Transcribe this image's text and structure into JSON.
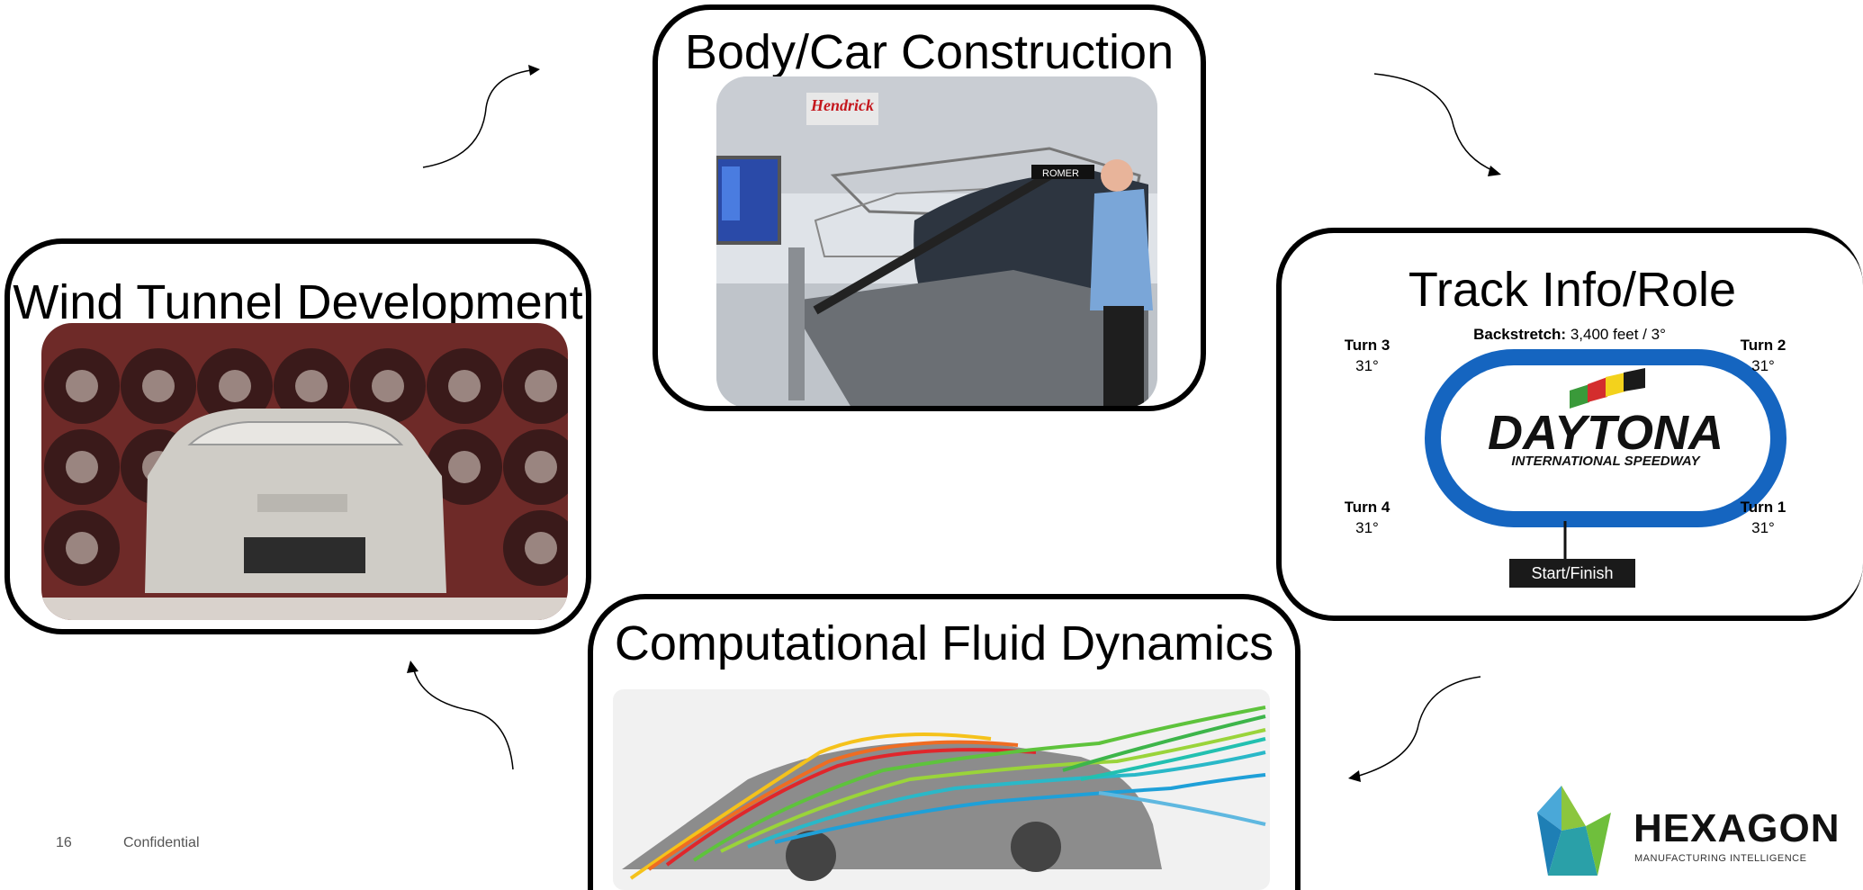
{
  "boxes": {
    "body_car_construction": {
      "title": "Body/Car Construction"
    },
    "track_info_role": {
      "title": "Track Info/Role"
    },
    "computational_fluid_dynamics": {
      "title": "Computational Fluid Dynamics"
    },
    "wind_tunnel_development": {
      "title": "Wind Tunnel Development"
    }
  },
  "track_diagram": {
    "backstretch_label": "Backstretch:",
    "backstretch_value": "3,400 feet / 3°",
    "turns": [
      {
        "name": "Turn 3",
        "bank": "31°"
      },
      {
        "name": "Turn 2",
        "bank": "31°"
      },
      {
        "name": "Turn 4",
        "bank": "31°"
      },
      {
        "name": "Turn 1",
        "bank": "31°"
      }
    ],
    "logo_main": "DAYTONA",
    "logo_sub": "INTERNATIONAL SPEEDWAY",
    "start_finish": "Start/Finish",
    "track_color": "#1565c0"
  },
  "photo_text": {
    "hendrick_sign": "Hendrick",
    "romer_label": "ROMER"
  },
  "footer": {
    "page_number": "16",
    "confidential": "Confidential"
  },
  "logo": {
    "name": "HEXAGON",
    "tagline": "MANUFACTURING INTELLIGENCE"
  }
}
